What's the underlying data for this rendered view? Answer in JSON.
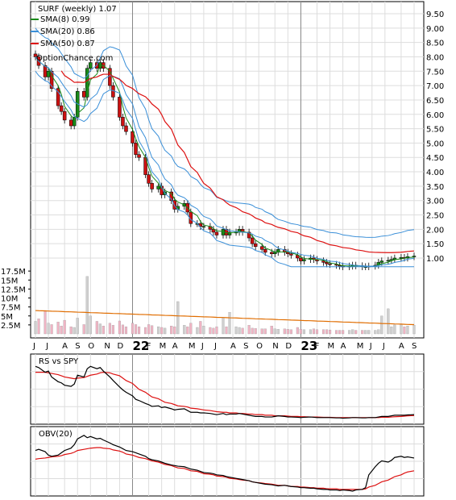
{
  "chart_data": {
    "type": "candlestick",
    "title": "SURF (weekly) 1.07",
    "source_text": "OptionChance.com",
    "colors": {
      "up": "#1a8a1a",
      "down": "#cc1111",
      "sma8": "#1a8a1a",
      "sma20": "#3a8fd8",
      "sma50": "#dd1111",
      "bollinger_dip": "#eeee00",
      "volume_up": "#cfcfcf",
      "volume_down": "#f0b4c4",
      "volume_avg": "#e06d00",
      "rs": "#000000",
      "rs_avg": "#dd1111",
      "obv": "#000000",
      "obv_avg": "#dd1111",
      "grid": "#dddddd"
    },
    "legend": [
      {
        "label": "SMA(8) 0.99",
        "color": "#1a8a1a"
      },
      {
        "label": "SMA(20) 0.86",
        "color": "#3a8fd8"
      },
      {
        "label": "SMA(50) 0.87",
        "color": "#dd1111"
      }
    ],
    "price_axis": {
      "min": 0.5,
      "max": 9.5,
      "ticks": [
        "9.50",
        "9.00",
        "8.50",
        "8.00",
        "7.50",
        "7.00",
        "6.50",
        "6.00",
        "5.50",
        "5.00",
        "4.50",
        "4.00",
        "3.50",
        "3.00",
        "2.50",
        "2.00",
        "1.50",
        "1.00"
      ],
      "current_label": "1.00"
    },
    "volume_axis": {
      "max": 20000000,
      "ticks": [
        "17.5M",
        "15M",
        "12.5M",
        "10M",
        "7.5M",
        "5M",
        "2.5M"
      ]
    },
    "x_labels": [
      {
        "label": "J",
        "week": 0
      },
      {
        "label": "J",
        "week": 4
      },
      {
        "label": "A",
        "week": 9
      },
      {
        "label": "S",
        "week": 13
      },
      {
        "label": "O",
        "week": 17
      },
      {
        "label": "N",
        "week": 22
      },
      {
        "label": "D",
        "week": 26
      },
      {
        "label": "22",
        "week": 30,
        "big": true
      },
      {
        "label": "F",
        "week": 35
      },
      {
        "label": "M",
        "week": 39
      },
      {
        "label": "A",
        "week": 43
      },
      {
        "label": "M",
        "week": 48
      },
      {
        "label": "J",
        "week": 52
      },
      {
        "label": "J",
        "week": 56
      },
      {
        "label": "A",
        "week": 61
      },
      {
        "label": "S",
        "week": 65
      },
      {
        "label": "O",
        "week": 69
      },
      {
        "label": "N",
        "week": 74
      },
      {
        "label": "D",
        "week": 78
      },
      {
        "label": "23",
        "week": 82,
        "big": true
      },
      {
        "label": "F",
        "week": 87
      },
      {
        "label": "M",
        "week": 91
      },
      {
        "label": "A",
        "week": 95
      },
      {
        "label": "M",
        "week": 100
      },
      {
        "label": "J",
        "week": 104
      },
      {
        "label": "J",
        "week": 108
      },
      {
        "label": "A",
        "week": 113
      },
      {
        "label": "S",
        "week": 117
      }
    ],
    "year_dividers": [
      30,
      82
    ],
    "price_close": [
      8.0,
      7.7,
      7.3,
      7.5,
      6.9,
      6.3,
      6.1,
      5.8,
      5.6,
      5.9,
      6.8,
      6.6,
      7.6,
      7.8,
      7.6,
      7.8,
      7.6,
      7.0,
      6.6,
      5.9,
      5.6,
      5.4,
      5.0,
      4.6,
      4.5,
      3.9,
      3.6,
      3.4,
      3.5,
      3.2,
      3.3,
      3.0,
      2.7,
      2.8,
      2.9,
      2.6,
      2.2,
      2.2,
      2.1,
      2.1,
      2.0,
      1.9,
      1.8,
      2.0,
      1.8,
      1.9,
      1.9,
      2.0,
      1.9,
      1.7,
      1.5,
      1.4,
      1.3,
      1.2,
      1.15,
      1.2,
      1.3,
      1.2,
      1.15,
      1.1,
      1.0,
      0.9,
      0.95,
      1.0,
      0.95,
      0.9,
      0.85,
      0.8,
      0.78,
      0.75,
      0.72,
      0.7,
      0.72,
      0.75,
      0.73,
      0.7,
      0.7,
      0.72,
      0.75,
      0.85,
      0.9,
      0.92,
      0.95,
      1.0,
      1.02,
      1.0,
      1.05,
      1.07
    ],
    "rs_line": [
      0.9,
      0.88,
      0.8,
      0.82,
      0.72,
      0.64,
      0.62,
      0.58,
      0.56,
      0.6,
      0.75,
      0.72,
      0.86,
      0.9,
      0.86,
      0.88,
      0.82,
      0.72,
      0.66,
      0.55,
      0.5,
      0.46,
      0.4,
      0.34,
      0.32,
      0.27,
      0.25,
      0.22,
      0.23,
      0.2,
      0.21,
      0.18,
      0.16,
      0.17,
      0.18,
      0.15,
      0.12,
      0.12,
      0.11,
      0.11,
      0.1,
      0.09,
      0.08,
      0.1,
      0.08,
      0.09,
      0.09,
      0.1,
      0.09,
      0.07,
      0.06,
      0.05,
      0.05,
      0.04,
      0.04,
      0.05,
      0.06,
      0.05,
      0.04,
      0.04,
      0.035,
      0.03,
      0.035,
      0.04,
      0.035,
      0.03,
      0.03,
      0.03,
      0.03,
      0.025,
      0.025,
      0.02,
      0.025,
      0.03,
      0.03,
      0.025,
      0.025,
      0.03,
      0.03,
      0.04,
      0.05,
      0.05,
      0.06,
      0.07,
      0.07,
      0.07,
      0.075,
      0.08
    ],
    "rs_avg": [
      0.8,
      0.8,
      0.8,
      0.79,
      0.78,
      0.76,
      0.74,
      0.72,
      0.7,
      0.69,
      0.7,
      0.71,
      0.73,
      0.75,
      0.77,
      0.79,
      0.8,
      0.79,
      0.77,
      0.74,
      0.7,
      0.66,
      0.61,
      0.56,
      0.51,
      0.46,
      0.42,
      0.38,
      0.35,
      0.32,
      0.29,
      0.27,
      0.25,
      0.23,
      0.22,
      0.21,
      0.19,
      0.18,
      0.17,
      0.16,
      0.15,
      0.14,
      0.13,
      0.12,
      0.12,
      0.11,
      0.11,
      0.1,
      0.1,
      0.09,
      0.09,
      0.08,
      0.08,
      0.07,
      0.07,
      0.06,
      0.06,
      0.06,
      0.055,
      0.05,
      0.05,
      0.045,
      0.045,
      0.04,
      0.04,
      0.04,
      0.035,
      0.035,
      0.035,
      0.03,
      0.03,
      0.03,
      0.03,
      0.03,
      0.03,
      0.03,
      0.03,
      0.03,
      0.03,
      0.03,
      0.035,
      0.035,
      0.04,
      0.045,
      0.05,
      0.055,
      0.06,
      0.065
    ],
    "obv_line": [
      0.7,
      0.72,
      0.68,
      0.62,
      0.6,
      0.62,
      0.66,
      0.7,
      0.74,
      0.8,
      0.9,
      0.96,
      0.92,
      0.94,
      0.9,
      0.91,
      0.88,
      0.83,
      0.8,
      0.76,
      0.73,
      0.7,
      0.68,
      0.66,
      0.64,
      0.6,
      0.56,
      0.54,
      0.52,
      0.5,
      0.48,
      0.45,
      0.44,
      0.43,
      0.42,
      0.4,
      0.38,
      0.36,
      0.34,
      0.32,
      0.31,
      0.3,
      0.28,
      0.27,
      0.25,
      0.24,
      0.22,
      0.21,
      0.2,
      0.18,
      0.16,
      0.15,
      0.13,
      0.12,
      0.11,
      0.1,
      0.09,
      0.1,
      0.09,
      0.08,
      0.07,
      0.06,
      0.06,
      0.05,
      0.05,
      0.04,
      0.03,
      0.03,
      0.02,
      0.02,
      0.01,
      0.02,
      0.01,
      0.0,
      0.02,
      0.03,
      0.06,
      0.28,
      0.42,
      0.48,
      0.52,
      0.5,
      0.53,
      0.58,
      0.6,
      0.58,
      0.59,
      0.57
    ],
    "obv_avg": [
      0.55,
      0.56,
      0.57,
      0.58,
      0.59,
      0.6,
      0.61,
      0.63,
      0.65,
      0.67,
      0.7,
      0.72,
      0.73,
      0.74,
      0.75,
      0.75,
      0.74,
      0.73,
      0.71,
      0.69,
      0.67,
      0.64,
      0.62,
      0.6,
      0.58,
      0.56,
      0.54,
      0.52,
      0.5,
      0.48,
      0.46,
      0.44,
      0.42,
      0.4,
      0.39,
      0.37,
      0.35,
      0.34,
      0.32,
      0.3,
      0.29,
      0.28,
      0.26,
      0.25,
      0.24,
      0.22,
      0.21,
      0.2,
      0.19,
      0.18,
      0.16,
      0.15,
      0.14,
      0.13,
      0.12,
      0.11,
      0.1,
      0.1,
      0.09,
      0.08,
      0.08,
      0.07,
      0.07,
      0.06,
      0.06,
      0.05,
      0.05,
      0.04,
      0.04,
      0.04,
      0.03,
      0.03,
      0.03,
      0.03,
      0.03,
      0.03,
      0.04,
      0.07,
      0.1,
      0.13,
      0.16,
      0.19,
      0.22,
      0.25,
      0.28,
      0.31,
      0.33,
      0.35
    ],
    "rs_label": "RS vs SPY",
    "obv_label": "OBV(20)"
  }
}
